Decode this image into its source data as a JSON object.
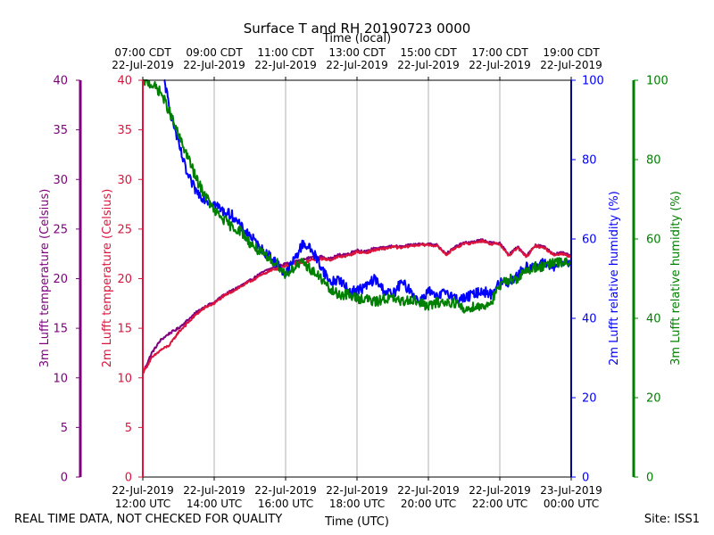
{
  "chart_data": {
    "type": "line",
    "title": "Surface T and RH 20190723 0000",
    "top_axis": {
      "label": "Time (local)",
      "ticks": [
        [
          "07:00 CDT",
          "22-Jul-2019"
        ],
        [
          "09:00 CDT",
          "22-Jul-2019"
        ],
        [
          "11:00 CDT",
          "22-Jul-2019"
        ],
        [
          "13:00 CDT",
          "22-Jul-2019"
        ],
        [
          "15:00 CDT",
          "22-Jul-2019"
        ],
        [
          "17:00 CDT",
          "22-Jul-2019"
        ],
        [
          "19:00 CDT",
          "22-Jul-2019"
        ]
      ]
    },
    "bottom_axis": {
      "label": "Time (UTC)",
      "ticks": [
        [
          "22-Jul-2019",
          "12:00 UTC"
        ],
        [
          "22-Jul-2019",
          "14:00 UTC"
        ],
        [
          "22-Jul-2019",
          "16:00 UTC"
        ],
        [
          "22-Jul-2019",
          "18:00 UTC"
        ],
        [
          "22-Jul-2019",
          "20:00 UTC"
        ],
        [
          "22-Jul-2019",
          "22:00 UTC"
        ],
        [
          "23-Jul-2019",
          "00:00 UTC"
        ]
      ]
    },
    "xlim_hours_utc": [
      12,
      24
    ],
    "grid_x": true,
    "axes": {
      "left_outer": {
        "label": "3m Lufft temperature (Celsius)",
        "color": "#800080",
        "range": [
          0,
          40
        ],
        "ticks": [
          "0",
          "5",
          "10",
          "15",
          "20",
          "25",
          "30",
          "35",
          "40"
        ]
      },
      "left_inner": {
        "label": "2m Lufft temperature (Celsius)",
        "color": "#dc143c",
        "range": [
          0,
          40
        ],
        "ticks": [
          "0",
          "5",
          "10",
          "15",
          "20",
          "25",
          "30",
          "35",
          "40"
        ]
      },
      "right_inner": {
        "label": "2m Lufft relative humidity (%)",
        "color": "#0000ff",
        "range": [
          0,
          100
        ],
        "ticks": [
          "0",
          "20",
          "40",
          "60",
          "80",
          "100"
        ]
      },
      "right_outer": {
        "label": "3m Lufft relative humidity (%)",
        "color": "#008000",
        "range": [
          0,
          100
        ],
        "ticks": [
          "0",
          "20",
          "40",
          "60",
          "80",
          "100"
        ]
      }
    },
    "series": [
      {
        "name": "3m Lufft temperature",
        "axis": "left_outer",
        "color": "#800080",
        "x": [
          12.0,
          12.25,
          12.5,
          12.75,
          13.0,
          13.25,
          13.5,
          13.75,
          14.0,
          14.25,
          14.5,
          14.75,
          15.0,
          15.25,
          15.5,
          15.75,
          16.0,
          16.25,
          16.5,
          16.75,
          17.0,
          17.25,
          17.5,
          17.75,
          18.0,
          18.25,
          18.5,
          18.75,
          19.0,
          19.25,
          19.5,
          19.75,
          20.0,
          20.25,
          20.5,
          20.75,
          21.0,
          21.25,
          21.5,
          21.75,
          22.0,
          22.25,
          22.5,
          22.75,
          23.0,
          23.25,
          23.5,
          23.75,
          24.0
        ],
        "values": [
          10.5,
          12.5,
          13.8,
          14.5,
          15.0,
          15.8,
          16.6,
          17.2,
          17.6,
          18.3,
          18.8,
          19.3,
          19.8,
          20.4,
          20.9,
          21.2,
          21.5,
          21.7,
          21.9,
          22.2,
          22.2,
          22.0,
          22.4,
          22.5,
          22.9,
          22.7,
          23.1,
          23.1,
          23.3,
          23.2,
          23.4,
          23.5,
          23.5,
          23.4,
          22.5,
          23.2,
          23.6,
          23.7,
          23.9,
          23.6,
          23.6,
          22.4,
          23.2,
          22.3,
          23.4,
          23.2,
          22.5,
          22.6,
          22.3
        ]
      },
      {
        "name": "2m Lufft temperature",
        "axis": "left_inner",
        "color": "#dc143c",
        "x": [
          12.0,
          12.25,
          12.5,
          12.75,
          13.0,
          13.25,
          13.5,
          13.75,
          14.0,
          14.25,
          14.5,
          14.75,
          15.0,
          15.25,
          15.5,
          15.75,
          16.0,
          16.25,
          16.5,
          16.75,
          17.0,
          17.25,
          17.5,
          17.75,
          18.0,
          18.25,
          18.5,
          18.75,
          19.0,
          19.25,
          19.5,
          19.75,
          20.0,
          20.25,
          20.5,
          20.75,
          21.0,
          21.25,
          21.5,
          21.75,
          22.0,
          22.25,
          22.5,
          22.75,
          23.0,
          23.25,
          23.5,
          23.75,
          24.0
        ],
        "values": [
          10.5,
          12.0,
          12.8,
          13.3,
          14.6,
          15.5,
          16.4,
          17.1,
          17.5,
          18.2,
          18.7,
          19.2,
          19.7,
          20.2,
          20.7,
          21.0,
          21.3,
          21.5,
          21.6,
          21.9,
          22.0,
          21.9,
          22.2,
          22.3,
          22.7,
          22.6,
          22.9,
          23.0,
          23.2,
          23.1,
          23.3,
          23.4,
          23.4,
          23.3,
          22.4,
          23.1,
          23.5,
          23.6,
          23.8,
          23.5,
          23.5,
          22.3,
          23.1,
          22.2,
          23.3,
          23.1,
          22.4,
          22.5,
          22.2
        ]
      },
      {
        "name": "2m Lufft relative humidity",
        "axis": "right_inner",
        "color": "#0000ff",
        "x": [
          12.6,
          12.75,
          13.0,
          13.25,
          13.5,
          13.75,
          14.0,
          14.25,
          14.5,
          14.75,
          15.0,
          15.25,
          15.5,
          15.75,
          16.0,
          16.25,
          16.5,
          16.75,
          17.0,
          17.25,
          17.5,
          17.75,
          18.0,
          18.25,
          18.5,
          18.75,
          19.0,
          19.25,
          19.5,
          19.75,
          20.0,
          20.25,
          20.5,
          20.75,
          21.0,
          21.25,
          21.5,
          21.75,
          22.0,
          22.25,
          22.5,
          22.75,
          23.0,
          23.25,
          23.5,
          23.75,
          24.0
        ],
        "values": [
          100,
          93,
          84,
          76,
          72,
          70,
          69,
          67,
          66,
          63,
          61,
          58,
          56,
          54,
          51,
          55,
          59,
          57,
          53,
          49,
          50,
          47,
          47,
          48,
          50,
          47,
          46,
          49,
          47,
          44,
          47,
          45,
          47,
          45,
          45,
          46,
          47,
          46,
          49,
          49,
          51,
          53,
          53,
          54,
          53,
          54,
          54
        ]
      },
      {
        "name": "3m Lufft relative humidity",
        "axis": "right_outer",
        "color": "#008000",
        "x": [
          12.0,
          12.25,
          12.5,
          12.75,
          13.0,
          13.25,
          13.5,
          13.75,
          14.0,
          14.25,
          14.5,
          14.75,
          15.0,
          15.25,
          15.5,
          15.75,
          16.0,
          16.25,
          16.5,
          16.75,
          17.0,
          17.25,
          17.5,
          17.75,
          18.0,
          18.25,
          18.5,
          18.75,
          19.0,
          19.25,
          19.5,
          19.75,
          20.0,
          20.25,
          20.5,
          20.75,
          21.0,
          21.25,
          21.5,
          21.75,
          22.0,
          22.25,
          22.5,
          22.75,
          23.0,
          23.25,
          23.5,
          23.75,
          24.0
        ],
        "values": [
          100,
          99,
          97,
          92,
          86,
          81,
          75,
          71,
          67,
          65,
          63,
          62,
          59,
          57,
          55,
          54,
          51,
          53,
          54,
          52,
          50,
          47,
          46,
          46,
          45,
          45,
          44,
          45,
          45,
          44,
          45,
          44,
          43,
          44,
          44,
          44,
          42,
          43,
          43,
          44,
          48,
          50,
          50,
          52,
          53,
          53,
          54,
          54,
          54
        ]
      }
    ],
    "footer_left": "REAL TIME DATA, NOT CHECKED FOR QUALITY",
    "footer_right": "Site: ISS1"
  }
}
